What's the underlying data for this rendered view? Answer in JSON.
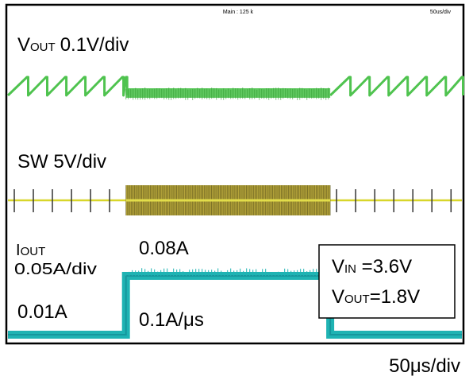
{
  "header": {
    "trigger_readout": "Main : 125 k",
    "timebase_small": "50us/div"
  },
  "channels": {
    "vout": {
      "label_main": "V",
      "label_sub": "OUT",
      "scale": "0.1V/div",
      "color": "#4fc34f"
    },
    "sw": {
      "label": "SW 5V/div",
      "color": "#d8d62a"
    },
    "iout": {
      "label_main": "I",
      "label_sub": "OUT",
      "scale": "0.05A/div",
      "color": "#1fb3b3"
    }
  },
  "annotations": {
    "high_current": "0.08A",
    "low_current": "0.01A",
    "slew_rate": "0.1A/μs",
    "conditions": [
      {
        "main": "V",
        "sub": "IN",
        "value": " =3.6V"
      },
      {
        "main": "V",
        "sub": "OUT",
        "value": "=1.8V"
      }
    ],
    "timebase": "50μs/div"
  },
  "chart_data": {
    "type": "line",
    "time_unit": "μs",
    "x_range_us": [
      0,
      500
    ],
    "load_step": {
      "rise_time_us": 130,
      "fall_time_us": 355
    },
    "series": [
      {
        "name": "VOUT",
        "scale": "0.1V/div",
        "values_description": null,
        "segments": [
          {
            "t_start_us": 0,
            "t_end_us": 130,
            "mode": "sawtooth ripple",
            "ripple_period_us": 21
          },
          {
            "t_start_us": 130,
            "t_end_us": 355,
            "mode": "flat (continuous switching)"
          },
          {
            "t_start_us": 355,
            "t_end_us": 500,
            "mode": "sawtooth ripple",
            "ripple_period_us": 21
          }
        ]
      },
      {
        "name": "SW",
        "scale": "5V/div",
        "segments": [
          {
            "t_start_us": 0,
            "t_end_us": 130,
            "mode": "sparse pulses",
            "pulse_period_us": 21
          },
          {
            "t_start_us": 130,
            "t_end_us": 355,
            "mode": "dense switching"
          },
          {
            "t_start_us": 355,
            "t_end_us": 500,
            "mode": "sparse pulses",
            "pulse_period_us": 21
          }
        ]
      },
      {
        "name": "IOUT",
        "scale": "0.05A/div",
        "unit": "A",
        "points": [
          {
            "t_us": 0,
            "value": 0.01
          },
          {
            "t_us": 130,
            "value": 0.01
          },
          {
            "t_us": 130,
            "value": 0.08
          },
          {
            "t_us": 355,
            "value": 0.08
          },
          {
            "t_us": 355,
            "value": 0.01
          },
          {
            "t_us": 500,
            "value": 0.01
          }
        ]
      }
    ]
  }
}
